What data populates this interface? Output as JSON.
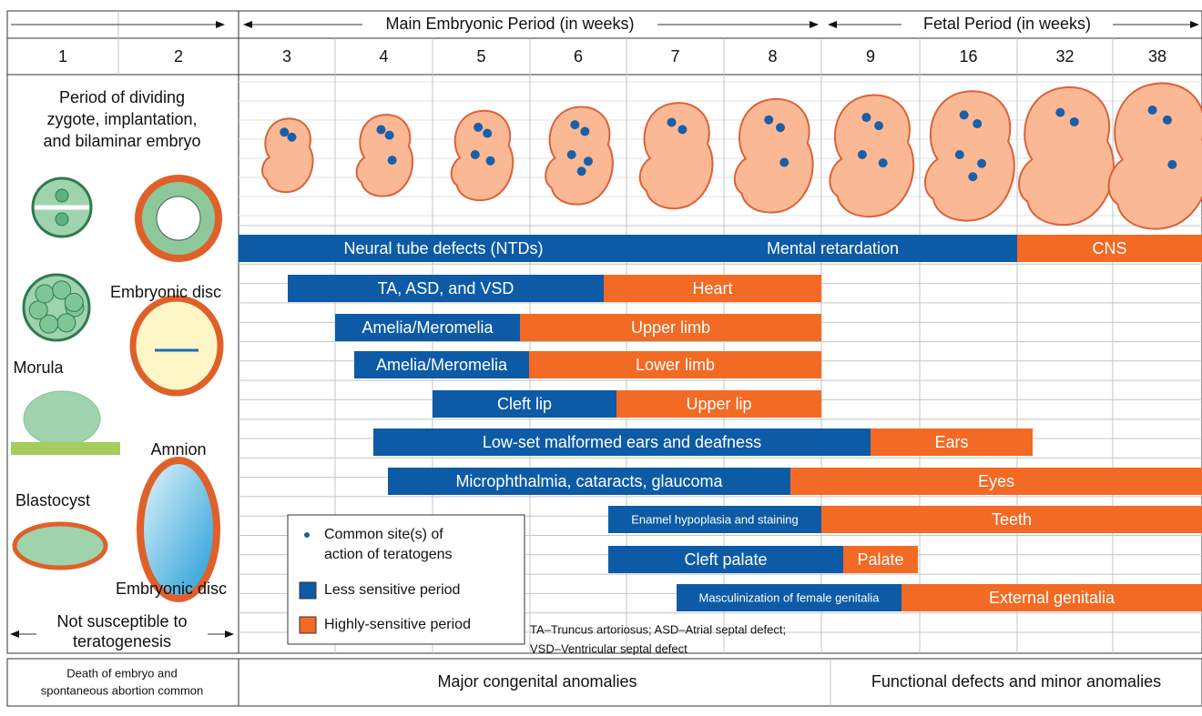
{
  "header": {
    "main_period": "Main Embryonic Period (in weeks)",
    "fetal_period": "Fetal Period (in weeks)",
    "early_weeks": [
      "1",
      "2"
    ],
    "weeks": [
      "3",
      "4",
      "5",
      "6",
      "7",
      "8",
      "9",
      "16",
      "32",
      "38"
    ]
  },
  "left_panel": {
    "description": [
      "Period of dividing",
      "zygote, implantation,",
      "and bilaminar embryo"
    ],
    "labels": [
      "Embryonic disc",
      "Morula",
      "Amnion",
      "Blastocyst",
      "Embryonic disc"
    ],
    "not_susceptible": [
      "Not susceptible to",
      "teratogenesis"
    ],
    "outcome": [
      "Death of embryo and",
      "spontaneous abortion common"
    ]
  },
  "rows": [
    {
      "less_sensitive": [
        "Neural tube defects (NTDs)",
        "Mental retardation"
      ],
      "highly_sensitive": [
        "CNS"
      ]
    },
    {
      "less_sensitive": [
        "TA, ASD, and VSD"
      ],
      "highly_sensitive": [
        "Heart"
      ]
    },
    {
      "less_sensitive": [
        "Amelia/Meromelia"
      ],
      "highly_sensitive": [
        "Upper limb"
      ]
    },
    {
      "less_sensitive": [
        "Amelia/Meromelia"
      ],
      "highly_sensitive": [
        "Lower limb"
      ]
    },
    {
      "less_sensitive": [
        "Cleft lip"
      ],
      "highly_sensitive": [
        "Upper lip"
      ]
    },
    {
      "less_sensitive": [
        "Low-set malformed ears and deafness"
      ],
      "highly_sensitive": [
        "Ears"
      ]
    },
    {
      "less_sensitive": [
        "Microphthalmia, cataracts, glaucoma"
      ],
      "highly_sensitive": [
        "Eyes"
      ]
    },
    {
      "less_sensitive": [
        "Enamel hypoplasia and staining"
      ],
      "highly_sensitive": [
        "Teeth"
      ]
    },
    {
      "less_sensitive": [
        "Cleft palate"
      ],
      "highly_sensitive": [
        "Palate"
      ]
    },
    {
      "less_sensitive": [
        "Masculinization of female genitalia"
      ],
      "highly_sensitive": [
        "External genitalia"
      ]
    }
  ],
  "legend": {
    "items": [
      {
        "label": [
          "Common site(s) of",
          "action of teratogens"
        ],
        "color": "#1a5fa8"
      },
      {
        "label": [
          "Less sensitive period"
        ],
        "color": "#0d5ba6"
      },
      {
        "label": [
          "Highly-sensitive period"
        ],
        "color": "#f26a24"
      }
    ]
  },
  "footnote": [
    "TA–Truncus artoriosus; ASD–Atrial septal defect;",
    "VSD–Ventricular septal defect"
  ],
  "footer": {
    "major": "Major congenital anomalies",
    "functional": "Functional defects and minor anomalies"
  }
}
